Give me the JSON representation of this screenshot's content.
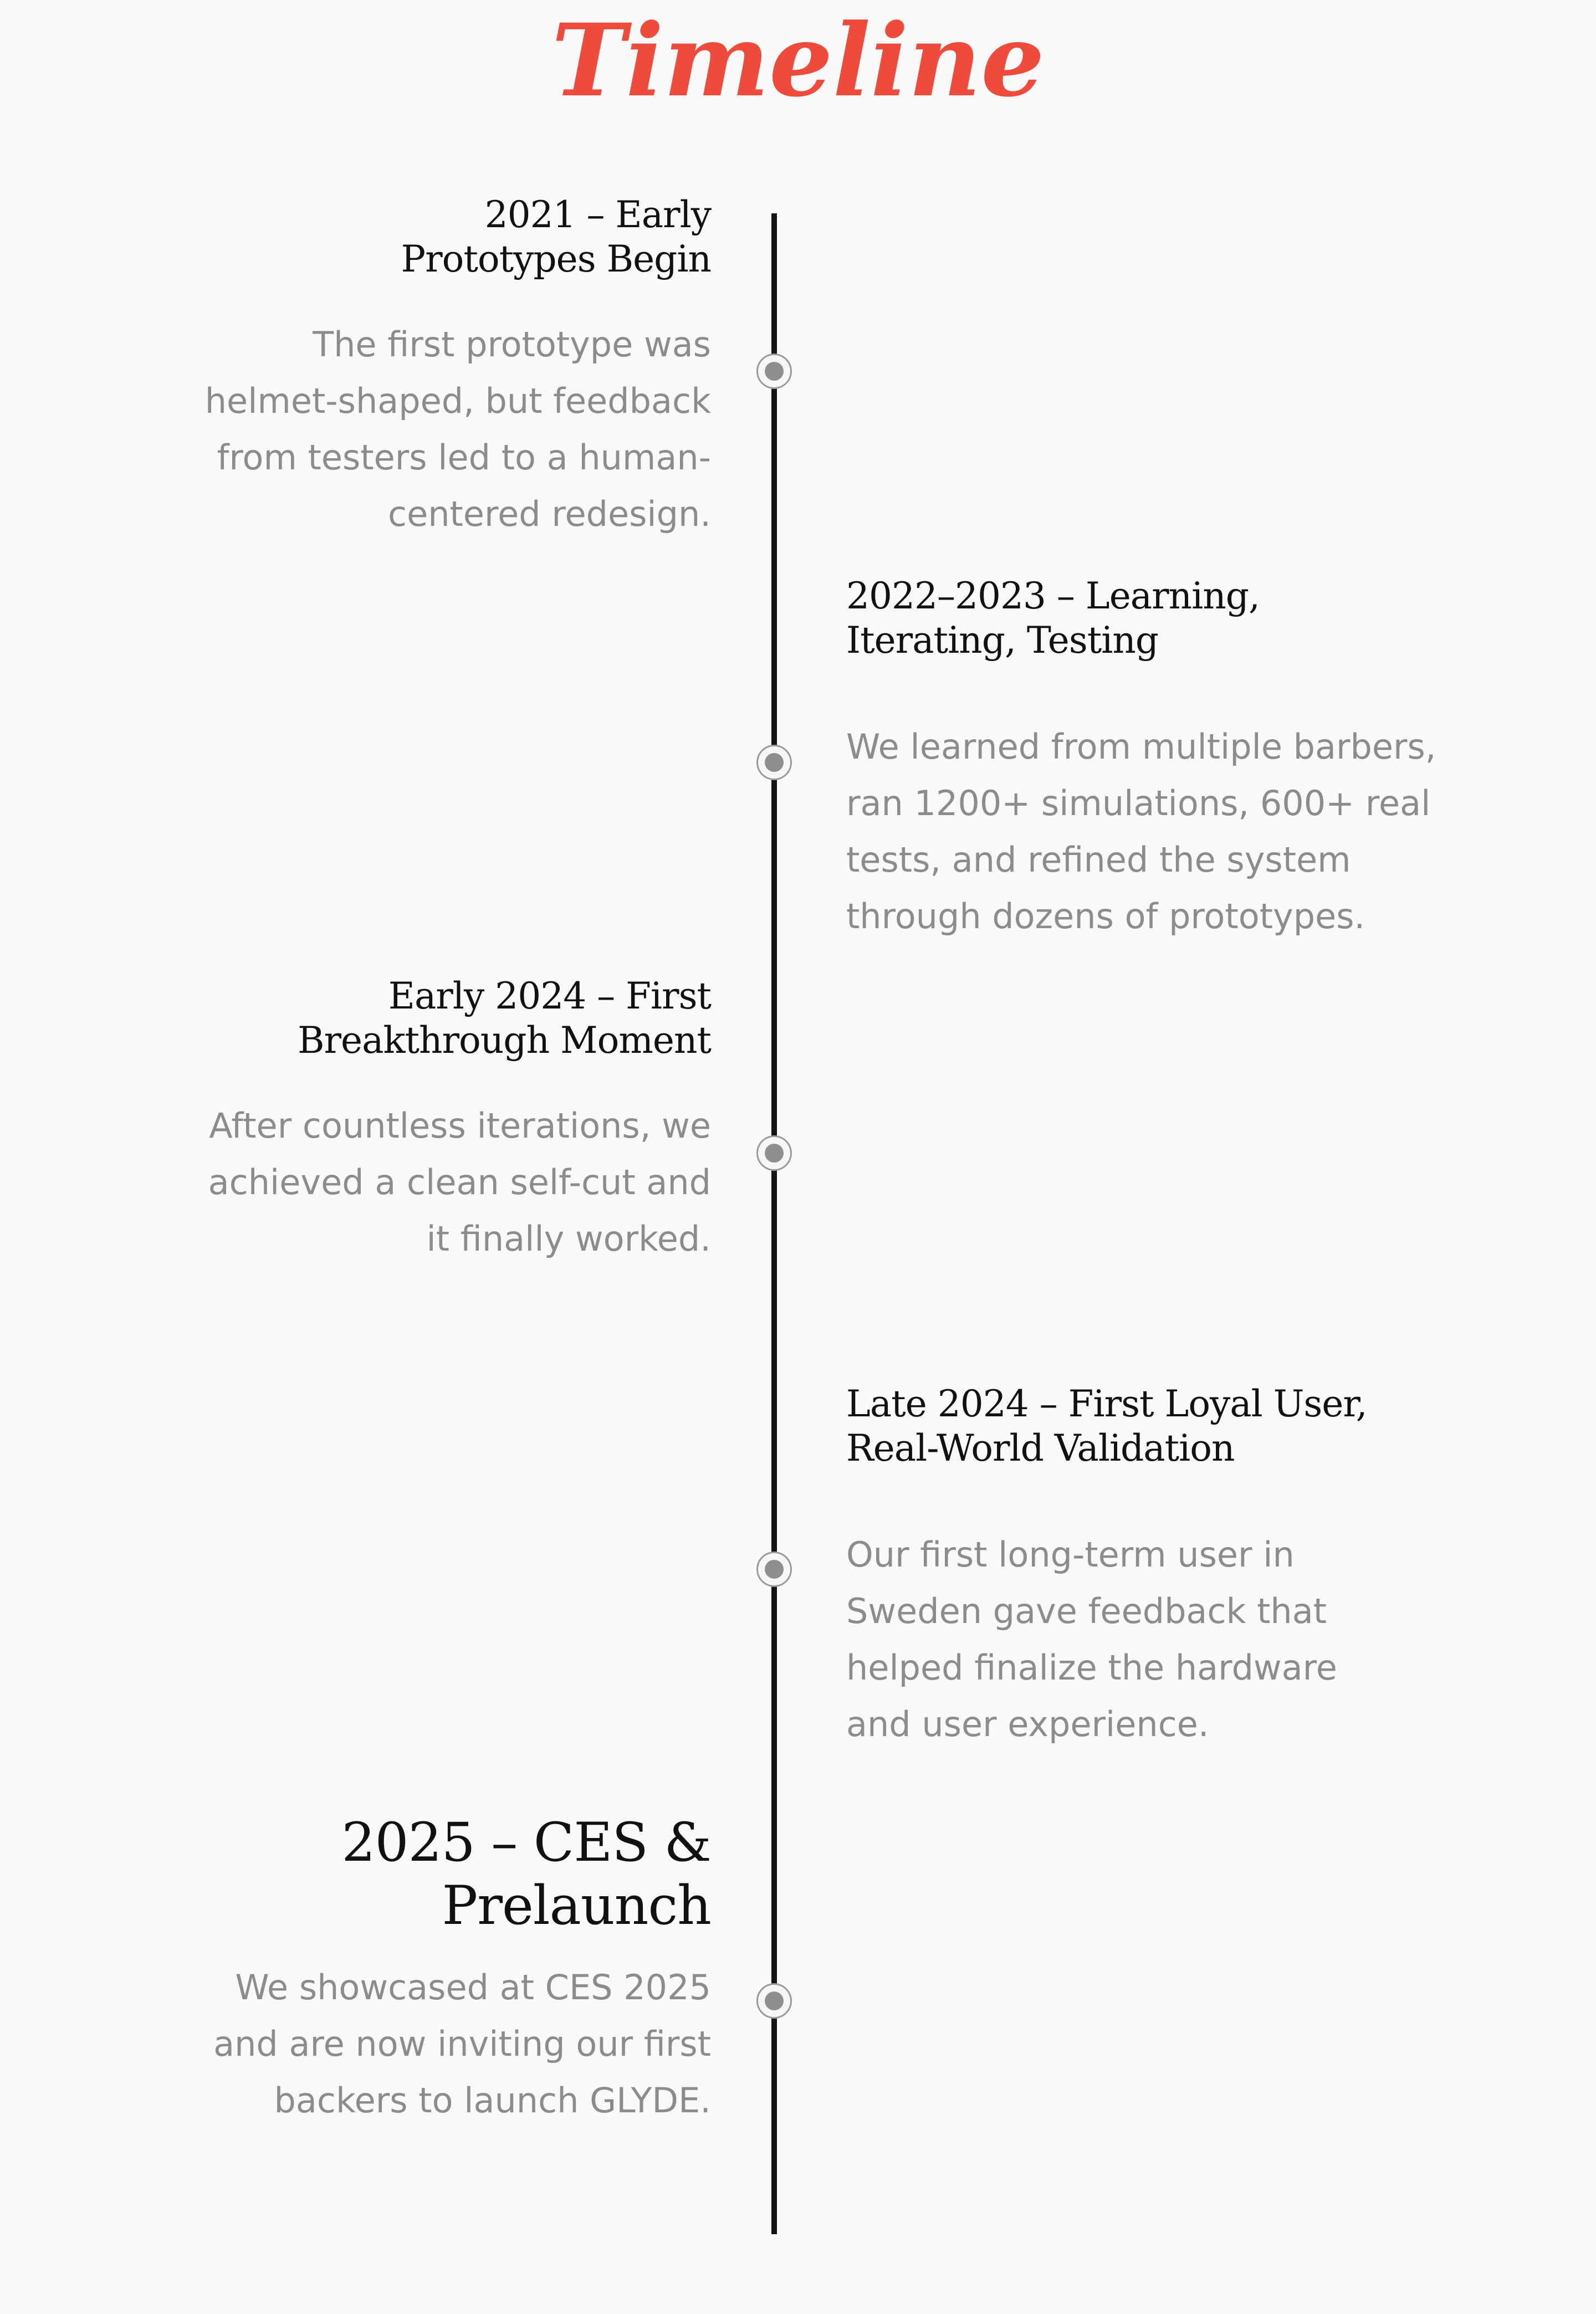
{
  "title": "Timeline",
  "entries": [
    {
      "title_line1": "2021 – Early",
      "title_line2": "Prototypes Begin",
      "desc_lines": [
        "The first prototype was",
        "helmet-shaped, but feedback",
        "from testers led to a human-",
        "centered redesign."
      ]
    },
    {
      "title_line1": "2022–2023 – Learning,",
      "title_line2": "Iterating, Testing",
      "desc_lines": [
        "We learned from multiple barbers,",
        "ran 1200+ simulations, 600+ real",
        "tests, and refined the system",
        "through dozens of prototypes."
      ]
    },
    {
      "title_line1": "Early 2024 – First",
      "title_line2": "Breakthrough Moment",
      "desc_lines": [
        "After countless iterations, we",
        "achieved a clean self-cut and",
        "it finally worked."
      ]
    },
    {
      "title_line1": "Late 2024 – First Loyal User,",
      "title_line2": "Real-World Validation",
      "desc_lines": [
        "Our first long-term user in",
        "Sweden gave feedback that",
        "helped finalize the hardware",
        "and user experience."
      ]
    },
    {
      "title_line1": "2025 – CES &",
      "title_line2": "Prelaunch",
      "desc_lines": [
        "We showcased at CES 2025",
        "and are now inviting our first",
        "backers to launch GLYDE."
      ]
    }
  ]
}
